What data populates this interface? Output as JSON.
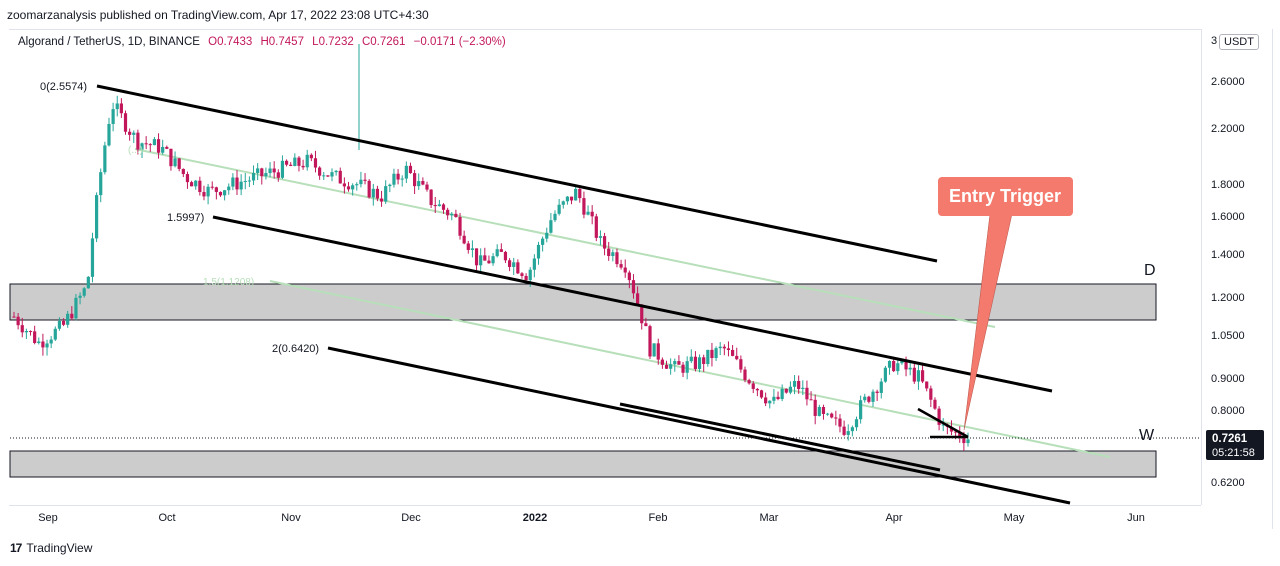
{
  "header": {
    "published_text": "zoomarzanalysis published on TradingView.com, Apr 17, 2022 23:08 UTC+4:30"
  },
  "legend": {
    "symbol": "Algorand / TetherUS, 1D, BINANCE",
    "open": "O0.7433",
    "high": "H0.7457",
    "low": "L0.7232",
    "close": "C0.7261",
    "change": "−0.0171 (−2.30%)"
  },
  "price_axis": {
    "currency_badge": "USDT",
    "top_partial_label": "3"
  },
  "footer": {
    "brand": "TradingView",
    "logo_glyph": "17"
  },
  "colors": {
    "up": "#26a69a",
    "down": "#c2185b",
    "zone_fill": "#cccccc",
    "fib_line": "#b7dfb9",
    "callout": "#f47a6d",
    "price_tag": "#131722"
  },
  "chart_data": {
    "type": "candlestick",
    "title": "Algorand / TetherUS, 1D, BINANCE",
    "scale": "log",
    "price_ticks": [
      "2.6000",
      "2.2000",
      "1.8000",
      "1.6000",
      "1.4000",
      "1.2000",
      "1.0500",
      "0.9000",
      "0.8000",
      "0.6200"
    ],
    "time_ticks": [
      "Sep",
      "Oct",
      "Nov",
      "Dec",
      "2022",
      "Feb",
      "Mar",
      "Apr",
      "May",
      "Jun"
    ],
    "last_price": "0.7261",
    "countdown": "05:21:58",
    "annotations": {
      "fib_0": "0(2.5574)",
      "fib_1": "1.5997)",
      "fib_1_5": "1.5(1.1208)",
      "fib_2": "2(0.6420)",
      "fib_faint": "(...)",
      "entry_trigger": "Entry Trigger",
      "zone_d": "D",
      "zone_w": "W"
    },
    "zones": [
      {
        "label": "D",
        "top": 1.25,
        "bottom": 1.1
      },
      {
        "label": "W",
        "top": 0.705,
        "bottom": 0.635
      }
    ],
    "closes_weekly_approx": [
      1.12,
      1.02,
      1.08,
      1.25,
      2.4,
      2.1,
      2.05,
      1.85,
      1.75,
      1.8,
      1.85,
      1.9,
      1.95,
      1.85,
      1.8,
      1.72,
      1.9,
      1.7,
      1.6,
      1.35,
      1.4,
      1.3,
      1.6,
      1.75,
      1.45,
      1.35,
      1.0,
      0.93,
      0.95,
      1.0,
      0.9,
      0.82,
      0.88,
      0.78,
      0.75,
      0.85,
      0.95,
      0.9,
      0.75,
      0.7261
    ],
    "channel_lines": [
      {
        "role": "upper",
        "from": [
          "Sep 9",
          2.5574
        ],
        "to": [
          "Apr 30",
          1.37
        ]
      },
      {
        "role": "middle",
        "from": [
          "Oct 12",
          1.5997
        ],
        "to": [
          "May 10",
          0.88
        ]
      },
      {
        "role": "lower",
        "from": [
          "Nov 10",
          0.642
        ],
        "to": [
          "May 31",
          0.6
        ]
      }
    ]
  }
}
